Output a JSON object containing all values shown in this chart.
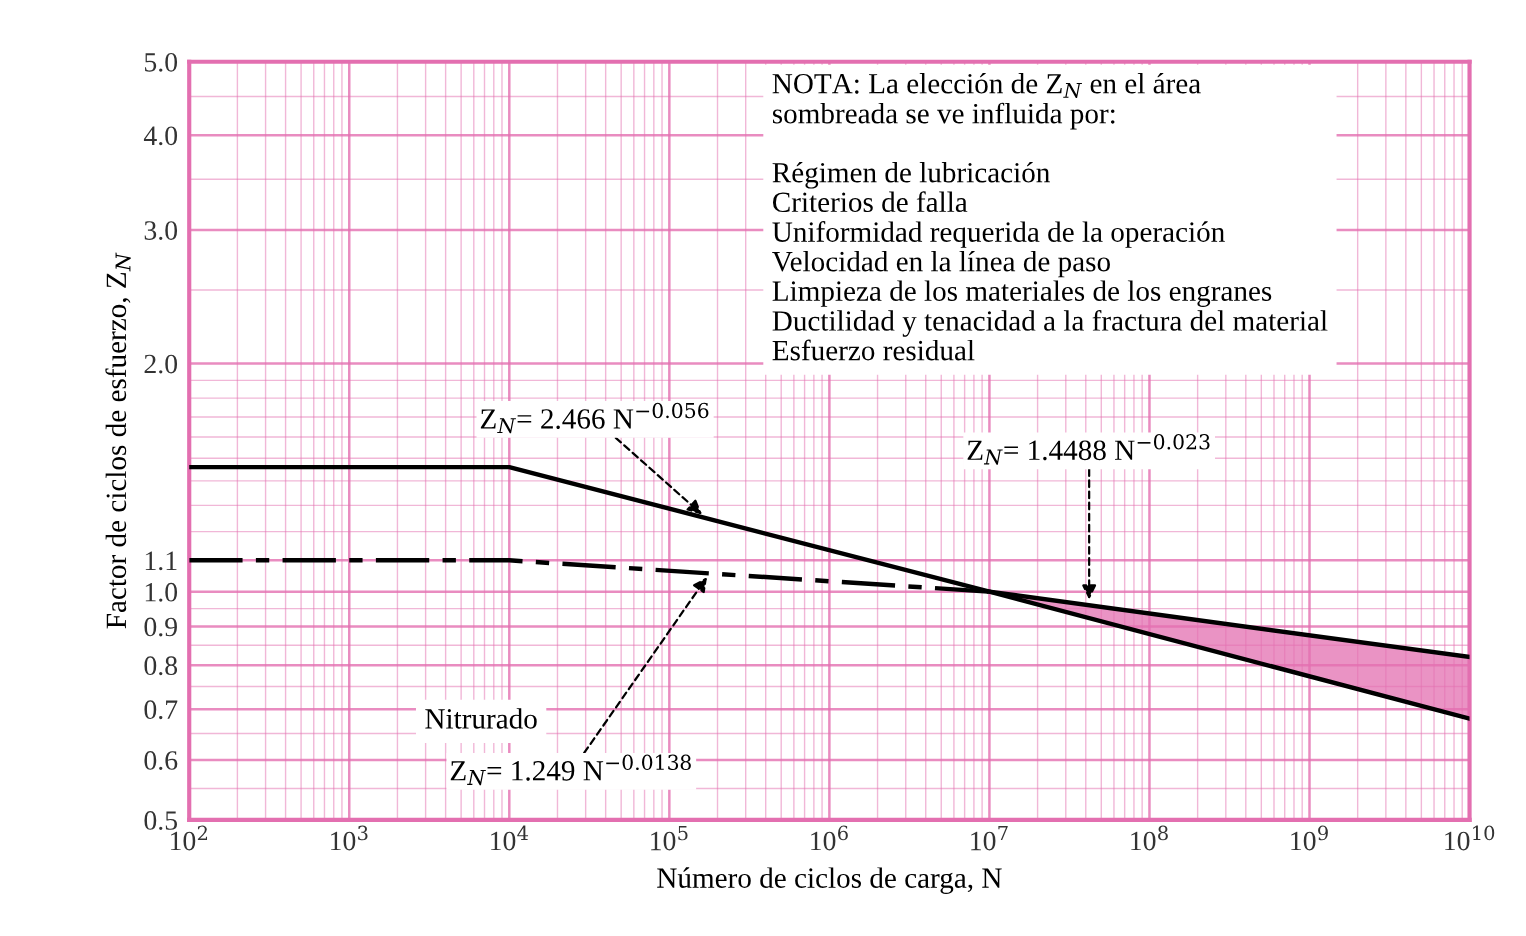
{
  "chart_data": {
    "type": "line",
    "xlabel": "Número de ciclos de carga, N",
    "ylabel": "Factor de ciclos de esfuerzo, Z$_{N}$",
    "log": "xy",
    "grid": true,
    "legend": false,
    "marker": "none",
    "xlim": [
      100,
      10000000000
    ],
    "ylim": [
      0.5,
      5.0
    ],
    "xticks": [
      {
        "value": 100,
        "label": "10$^{2}$"
      },
      {
        "value": 200,
        "label": null
      },
      {
        "value": 300,
        "label": null
      },
      {
        "value": 400,
        "label": null
      },
      {
        "value": 500,
        "label": null
      },
      {
        "value": 600,
        "label": null
      },
      {
        "value": 700,
        "label": null
      },
      {
        "value": 800,
        "label": null
      },
      {
        "value": 900,
        "label": null
      },
      {
        "value": 1000,
        "label": "10$^{3}$"
      },
      {
        "value": 2000,
        "label": null
      },
      {
        "value": 3000,
        "label": null
      },
      {
        "value": 4000,
        "label": null
      },
      {
        "value": 5000,
        "label": null
      },
      {
        "value": 6000,
        "label": null
      },
      {
        "value": 7000,
        "label": null
      },
      {
        "value": 8000,
        "label": null
      },
      {
        "value": 9000,
        "label": null
      },
      {
        "value": 10000,
        "label": "10$^{4}$"
      },
      {
        "value": 20000,
        "label": null
      },
      {
        "value": 30000,
        "label": null
      },
      {
        "value": 40000,
        "label": null
      },
      {
        "value": 50000,
        "label": null
      },
      {
        "value": 60000,
        "label": null
      },
      {
        "value": 70000,
        "label": null
      },
      {
        "value": 80000,
        "label": null
      },
      {
        "value": 90000,
        "label": null
      },
      {
        "value": 100000,
        "label": "10$^{5}$"
      },
      {
        "value": 200000,
        "label": null
      },
      {
        "value": 300000,
        "label": null
      },
      {
        "value": 400000,
        "label": null
      },
      {
        "value": 500000,
        "label": null
      },
      {
        "value": 600000,
        "label": null
      },
      {
        "value": 700000,
        "label": null
      },
      {
        "value": 800000,
        "label": null
      },
      {
        "value": 900000,
        "label": null
      },
      {
        "value": 1000000,
        "label": "10$^{6}$"
      },
      {
        "value": 2000000,
        "label": null
      },
      {
        "value": 3000000,
        "label": null
      },
      {
        "value": 4000000,
        "label": null
      },
      {
        "value": 5000000,
        "label": null
      },
      {
        "value": 6000000,
        "label": null
      },
      {
        "value": 7000000,
        "label": null
      },
      {
        "value": 8000000,
        "label": null
      },
      {
        "value": 9000000,
        "label": null
      },
      {
        "value": 10000000,
        "label": "10$^{7}$"
      },
      {
        "value": 20000000,
        "label": null
      },
      {
        "value": 30000000,
        "label": null
      },
      {
        "value": 40000000,
        "label": null
      },
      {
        "value": 50000000,
        "label": null
      },
      {
        "value": 60000000,
        "label": null
      },
      {
        "value": 70000000,
        "label": null
      },
      {
        "value": 80000000,
        "label": null
      },
      {
        "value": 90000000,
        "label": null
      },
      {
        "value": 100000000,
        "label": "10$^{8}$"
      },
      {
        "value": 200000000,
        "label": null
      },
      {
        "value": 300000000,
        "label": null
      },
      {
        "value": 400000000,
        "label": null
      },
      {
        "value": 500000000,
        "label": null
      },
      {
        "value": 600000000,
        "label": null
      },
      {
        "value": 700000000,
        "label": null
      },
      {
        "value": 800000000,
        "label": null
      },
      {
        "value": 900000000,
        "label": null
      },
      {
        "value": 1000000000,
        "label": "10$^{9}$"
      },
      {
        "value": 2000000000,
        "label": null
      },
      {
        "value": 3000000000,
        "label": null
      },
      {
        "value": 4000000000,
        "label": null
      },
      {
        "value": 5000000000,
        "label": null
      },
      {
        "value": 6000000000,
        "label": null
      },
      {
        "value": 7000000000,
        "label": null
      },
      {
        "value": 8000000000,
        "label": null
      },
      {
        "value": 9000000000,
        "label": null
      },
      {
        "value": 10000000000,
        "label": "10$^{10}$"
      }
    ],
    "yticks": [
      {
        "value": 0.5,
        "label": "0.5"
      },
      {
        "value": 0.55,
        "label": null
      },
      {
        "value": 0.6,
        "label": "0.6"
      },
      {
        "value": 0.65,
        "label": null
      },
      {
        "value": 0.7,
        "label": "0.7"
      },
      {
        "value": 0.75,
        "label": null
      },
      {
        "value": 0.8,
        "label": "0.8"
      },
      {
        "value": 0.85,
        "label": null
      },
      {
        "value": 0.9,
        "label": "0.9"
      },
      {
        "value": 0.95,
        "label": null
      },
      {
        "value": 1.0,
        "label": "1.0"
      },
      {
        "value": 1.1,
        "label": "1.1"
      },
      {
        "value": 1.2,
        "label": null
      },
      {
        "value": 1.3,
        "label": null
      },
      {
        "value": 1.4,
        "label": null
      },
      {
        "value": 1.5,
        "label": null
      },
      {
        "value": 1.6,
        "label": null
      },
      {
        "value": 1.7,
        "label": null
      },
      {
        "value": 1.8,
        "label": null
      },
      {
        "value": 1.9,
        "label": null
      },
      {
        "value": 2.0,
        "label": "2.0"
      },
      {
        "value": 2.5,
        "label": null
      },
      {
        "value": 3.0,
        "label": "3.0"
      },
      {
        "value": 3.5,
        "label": null
      },
      {
        "value": 4.0,
        "label": "4.0"
      },
      {
        "value": 4.5,
        "label": null
      },
      {
        "value": 5.0,
        "label": "5.0"
      }
    ],
    "series": [
      {
        "color": "#000000",
        "line_style": "solid",
        "x": [
          100,
          10000,
          10000000,
          10000000000
        ],
        "values": [
          1.46,
          1.46,
          1.0,
          0.68
        ]
      },
      {
        "color": "#000000",
        "line_style": "solid",
        "x": [
          10000000,
          10000000000
        ],
        "values": [
          1.0,
          0.82
        ],
        "lower": [
          1.0,
          0.68
        ],
        "upper": [
          1.0,
          0.82
        ]
      },
      {
        "color": "#000000",
        "line_style": "dashdot",
        "x": [
          100,
          10000,
          10000000
        ],
        "values": [
          1.1,
          1.1,
          1.0
        ]
      }
    ],
    "annotations": [
      {
        "text": "Z$_{N}$= 2.466 N$^{−0.056}$",
        "x": 170000,
        "y": 1.25
      },
      "Nitrurado",
      {
        "text": "Z$_{N}$= 1.249 N$^{−0.0138}$",
        "x": 180000,
        "y": 1.06
      },
      {
        "text": "Z$_{N}$= 1.4488 N$^{−0.023}$",
        "x": 42000000,
        "y": 0.96
      },
      "NOTA: La elección de Z$_{N}$ en el área\nsombreada se ve influida por:\n\nRégimen de lubricación\nCriterios de falla\nUniformidad requerida de la operación\nVelocidad en la línea de paso\nLimpieza de los materiales de los engranes\nDuctilidad y tenacidad a la fractura del material\nEsfuerzo residual"
    ]
  }
}
